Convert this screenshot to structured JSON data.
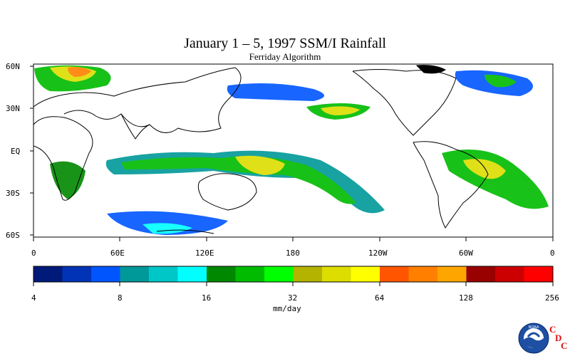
{
  "title": "January 1 – 5, 1997 SSM/I Rainfall",
  "subtitle": "Ferriday Algorithm",
  "map": {
    "lat_labels": [
      "60N",
      "30N",
      "EQ",
      "30S",
      "60S"
    ],
    "lon_labels": [
      "0",
      "60E",
      "120E",
      "180",
      "120W",
      "60W",
      "0"
    ]
  },
  "colorbar": {
    "unit": "mm/day",
    "tick_labels": [
      "4",
      "8",
      "16",
      "32",
      "64",
      "128",
      "256"
    ],
    "colors": [
      "#001a7a",
      "#0033b5",
      "#0055ff",
      "#009999",
      "#00c7c7",
      "#00ffff",
      "#008800",
      "#00bb00",
      "#00ff00",
      "#b3b300",
      "#dddd00",
      "#ffff00",
      "#ff5500",
      "#ff7f00",
      "#ffa500",
      "#990000",
      "#cc0000",
      "#ff0000"
    ]
  },
  "logo": {
    "org": "NOAA",
    "badge_letters": [
      "C",
      "D",
      "C"
    ]
  },
  "colors": {
    "land_outline": "#000000",
    "frame": "#000000",
    "badge": "#d11111"
  }
}
